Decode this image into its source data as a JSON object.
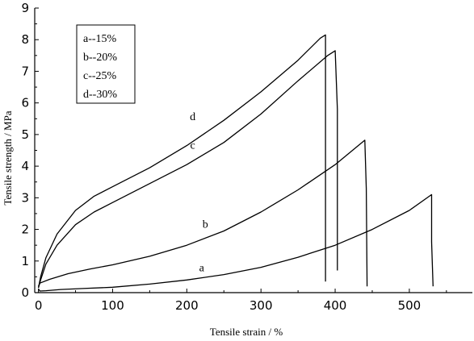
{
  "chart_data": {
    "type": "line",
    "xlabel": "Tensile strain / %",
    "ylabel": "Tensile strength / MPa",
    "xlim": [
      -5,
      585
    ],
    "ylim": [
      0,
      9
    ],
    "xticks": [
      0,
      100,
      200,
      300,
      400,
      500
    ],
    "yticks": [
      0,
      1,
      2,
      3,
      4,
      5,
      6,
      7,
      8,
      9
    ],
    "grid": false,
    "legend": {
      "placement": "top-left",
      "entries": [
        "a--15%",
        "b--20%",
        "c--25%",
        "d--30%"
      ]
    },
    "series": [
      {
        "name": "a",
        "x": [
          0,
          2,
          10,
          30,
          60,
          100,
          150,
          200,
          250,
          300,
          350,
          400,
          450,
          500,
          530,
          530,
          532
        ],
        "y": [
          0.12,
          0.05,
          0.06,
          0.1,
          0.13,
          0.17,
          0.27,
          0.4,
          0.57,
          0.8,
          1.12,
          1.5,
          2.0,
          2.6,
          3.1,
          1.6,
          0.2
        ],
        "end_label": {
          "text": "a",
          "x": 220,
          "y": 0.68
        }
      },
      {
        "name": "b",
        "x": [
          0,
          2,
          15,
          40,
          70,
          100,
          150,
          200,
          250,
          300,
          350,
          400,
          440,
          442,
          443
        ],
        "y": [
          0.2,
          0.3,
          0.42,
          0.6,
          0.75,
          0.88,
          1.15,
          1.5,
          1.95,
          2.55,
          3.25,
          4.05,
          4.82,
          3.3,
          0.2
        ],
        "end_label": {
          "text": "b",
          "x": 225,
          "y": 2.05
        }
      },
      {
        "name": "c",
        "x": [
          0,
          3,
          10,
          25,
          50,
          75,
          100,
          150,
          200,
          250,
          300,
          350,
          390,
          400,
          403,
          403
        ],
        "y": [
          0.15,
          0.4,
          0.9,
          1.5,
          2.15,
          2.55,
          2.85,
          3.45,
          4.05,
          4.75,
          5.65,
          6.7,
          7.5,
          7.65,
          5.8,
          0.7
        ],
        "end_label": {
          "text": "c",
          "x": 208,
          "y": 4.55
        }
      },
      {
        "name": "d",
        "x": [
          0,
          3,
          10,
          25,
          50,
          75,
          100,
          150,
          200,
          250,
          300,
          350,
          380,
          387,
          387
        ],
        "y": [
          0.15,
          0.5,
          1.1,
          1.85,
          2.6,
          3.05,
          3.35,
          3.95,
          4.65,
          5.45,
          6.35,
          7.35,
          8.05,
          8.15,
          0.35
        ],
        "end_label": {
          "text": "d",
          "x": 208,
          "y": 5.45
        }
      }
    ]
  }
}
